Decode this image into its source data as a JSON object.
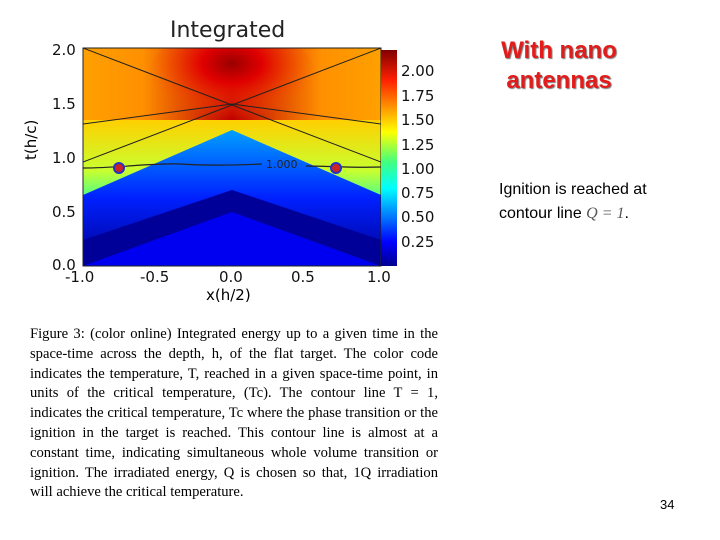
{
  "plot": {
    "title": "Integrated",
    "xlabel": "x(h/2)",
    "ylabel": "t(h/c)",
    "x_ticks": [
      "-1.0",
      "-0.5",
      "0.0",
      "0.5",
      "1.0"
    ],
    "y_ticks": [
      "0.0",
      "0.5",
      "1.0",
      "1.5",
      "2.0"
    ],
    "colorbar_ticks": [
      "0.25",
      "0.50",
      "0.75",
      "1.00",
      "1.25",
      "1.50",
      "1.75",
      "2.00"
    ],
    "contour_label": "1.000",
    "colors": {
      "marker_fill": "#cc2222",
      "marker_edge": "#2233cc"
    }
  },
  "heading_line1": "With nano",
  "heading_line2": "antennas",
  "note": {
    "text": "Ignition is reached at contour line ",
    "math": "Q = 1",
    "suffix": "."
  },
  "caption": {
    "label": "Figure 3:",
    "text": "(color online) Integrated energy up to a given time in the space-time across the depth, h, of the flat target. The color code indicates the temperature, T, reached in a given space-time point, in units of the critical temperature, (Tc). The contour line T = 1, indicates the critical temperature, Tc where the phase transition or the ignition in the target is reached. This contour line is almost at a constant time, indicating simultaneous whole volume transition or ignition. The irradiated energy, Q is chosen so that, 1Q irradiation will achieve the critical temperature."
  },
  "slide_number": "34"
}
